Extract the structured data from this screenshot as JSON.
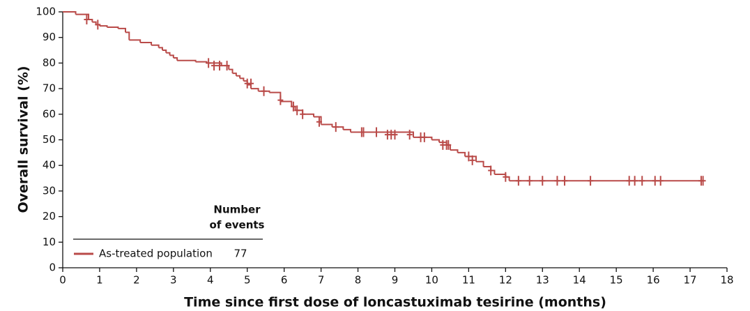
{
  "chart_data": {
    "type": "step",
    "x_label": "Time since first dose of loncastuximab tesirine (months)",
    "y_label": "Overall survival (%)",
    "xlim": [
      0,
      18
    ],
    "xticks": [
      0,
      1,
      2,
      3,
      4,
      5,
      6,
      7,
      8,
      9,
      10,
      11,
      12,
      13,
      14,
      15,
      16,
      17,
      18
    ],
    "ylim": [
      0,
      100
    ],
    "yticks": [
      0,
      10,
      20,
      30,
      40,
      50,
      60,
      70,
      80,
      90,
      100
    ],
    "events_header": [
      "Number",
      "of events"
    ],
    "series": [
      {
        "name": "As-treated population",
        "color": "#b94a48",
        "events": 77,
        "x": [
          0,
          0.35,
          0.7,
          0.8,
          0.9,
          1.0,
          1.2,
          1.5,
          1.7,
          1.8,
          2.1,
          2.4,
          2.6,
          2.7,
          2.8,
          2.9,
          3.0,
          3.1,
          3.6,
          3.9,
          4.3,
          4.5,
          4.6,
          4.7,
          4.8,
          4.9,
          5.0,
          5.1,
          5.3,
          5.6,
          5.9,
          6.2,
          6.3,
          6.5,
          6.8,
          7.0,
          7.3,
          7.6,
          7.8,
          9.5,
          10.0,
          10.2,
          10.4,
          10.5,
          10.7,
          10.9,
          11.2,
          11.4,
          11.6,
          11.7,
          12.0,
          12.1,
          17.35
        ],
        "values": [
          100,
          99,
          97,
          96,
          95,
          94.5,
          94,
          93.5,
          92,
          89,
          88,
          87,
          86,
          85,
          84,
          83,
          82,
          81,
          80.5,
          80,
          79,
          77.5,
          76,
          75,
          74,
          73,
          71.5,
          70,
          69,
          68.5,
          65,
          63,
          61.5,
          60,
          59,
          56,
          55,
          54,
          53,
          51,
          50,
          49,
          48,
          46,
          45,
          43.5,
          41.5,
          39.5,
          38,
          36.5,
          35.5,
          34,
          34
        ],
        "censored": {
          "x": [
            0.65,
            0.95,
            3.95,
            4.1,
            4.25,
            4.45,
            5.0,
            5.1,
            5.45,
            5.9,
            6.25,
            6.35,
            6.5,
            6.95,
            7.4,
            8.1,
            8.15,
            8.5,
            8.8,
            8.9,
            9.0,
            9.4,
            9.7,
            9.8,
            10.3,
            10.4,
            10.45,
            11.0,
            11.1,
            11.6,
            12.0,
            12.35,
            12.65,
            13.0,
            13.4,
            13.6,
            14.3,
            15.35,
            15.5,
            15.7,
            16.05,
            16.2,
            17.3,
            17.35
          ],
          "values": [
            97,
            95,
            80,
            79,
            79,
            79,
            72,
            72,
            69,
            65.5,
            63,
            61.5,
            60,
            57,
            55,
            53,
            53,
            53,
            52,
            52,
            52,
            52,
            51,
            51,
            48,
            48,
            48,
            43.5,
            42,
            38,
            35.5,
            34,
            34,
            34,
            34,
            34,
            34,
            34,
            34,
            34,
            34,
            34,
            34,
            34
          ]
        }
      }
    ]
  }
}
